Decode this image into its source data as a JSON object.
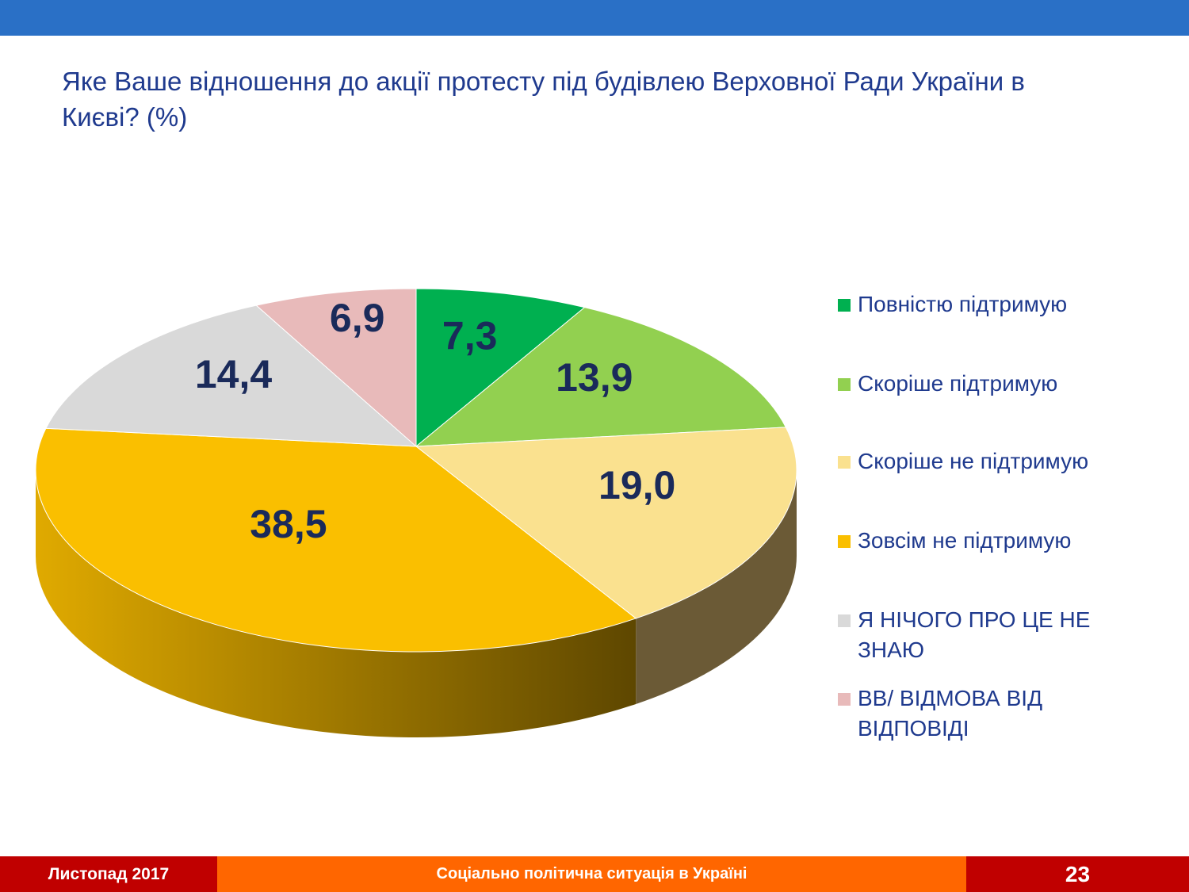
{
  "title": "Яке Ваше відношення до акції протесту під будівлею Верховної Ради України в Києві? (%)",
  "footer": {
    "date": "Листопад 2017",
    "subject": "Соціально політична ситуація в Україні",
    "page": "23"
  },
  "chart_data": {
    "type": "pie",
    "title": "Яке Ваше відношення до акції протесту під будівлею Верховної Ради України в Києві? (%)",
    "categories": [
      "Повністю підтримую",
      "Скоріше підтримую",
      "Скоріше не підтримую",
      "Зовсім не підтримую",
      "Я НІЧОГО ПРО ЦЕ НЕ ЗНАЮ",
      "ВВ/ ВІДМОВА ВІД ВІДПОВІДІ"
    ],
    "values": [
      7.3,
      13.9,
      19.0,
      38.5,
      14.4,
      6.9
    ],
    "labels": [
      "7,3",
      "13,9",
      "19,0",
      "38,5",
      "14,4",
      "6,9"
    ],
    "colors": [
      "#00b050",
      "#92d050",
      "#fae18f",
      "#fabf00",
      "#d9d9d9",
      "#e8baba"
    ],
    "side_colors": [
      "#006b30",
      "#577f30",
      "#6b5a36",
      "#8a6a00",
      "#777777",
      "#8a6a6a"
    ],
    "legend_position": "right"
  }
}
